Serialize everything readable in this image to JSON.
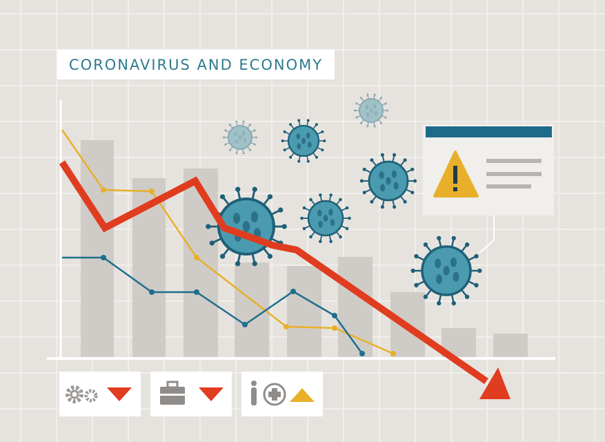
{
  "title": "CORONAVIRUS AND ECONOMY"
}
